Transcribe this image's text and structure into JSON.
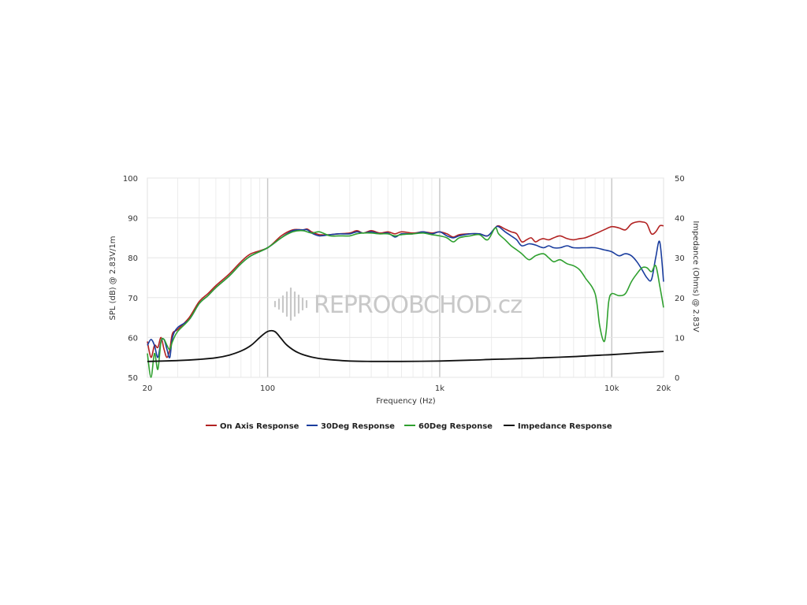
{
  "chart_data": {
    "type": "line",
    "title": "",
    "xlabel": "Frequency (Hz)",
    "ylabel": "SPL (dB) @ 2.83V/1m",
    "y2label": "Impedance (Ohms) @ 2.83V",
    "x_scale": "log",
    "xlim": [
      20,
      20000
    ],
    "ylim": [
      50,
      100
    ],
    "y2lim": [
      0,
      50
    ],
    "x_ticks": [
      {
        "value": 20,
        "label": "20"
      },
      {
        "value": 100,
        "label": "100"
      },
      {
        "value": 1000,
        "label": "1k"
      },
      {
        "value": 10000,
        "label": "10k"
      },
      {
        "value": 20000,
        "label": "20k"
      }
    ],
    "y_ticks": [
      "50",
      "60",
      "70",
      "80",
      "90",
      "100"
    ],
    "y2_ticks": [
      "0",
      "10",
      "20",
      "30",
      "40",
      "50"
    ],
    "grid": true,
    "legend_position": "bottom",
    "watermark": "REPROOBCHOD.cz",
    "series": [
      {
        "name": "On Axis Response",
        "color": "#b22222",
        "axis": "left",
        "points": [
          [
            20,
            59
          ],
          [
            21,
            55
          ],
          [
            22,
            58
          ],
          [
            23,
            57.5
          ],
          [
            24,
            60
          ],
          [
            25,
            57
          ],
          [
            26,
            55
          ],
          [
            27,
            57
          ],
          [
            28,
            61
          ],
          [
            30,
            62
          ],
          [
            35,
            65
          ],
          [
            40,
            69
          ],
          [
            45,
            71
          ],
          [
            50,
            73
          ],
          [
            60,
            76
          ],
          [
            70,
            79
          ],
          [
            80,
            81
          ],
          [
            100,
            82.5
          ],
          [
            120,
            85.5
          ],
          [
            140,
            87
          ],
          [
            160,
            87
          ],
          [
            170,
            87.2
          ],
          [
            180,
            86.5
          ],
          [
            200,
            85.8
          ],
          [
            230,
            85.8
          ],
          [
            260,
            86
          ],
          [
            300,
            86.2
          ],
          [
            330,
            86.8
          ],
          [
            360,
            86.2
          ],
          [
            400,
            86.8
          ],
          [
            450,
            86.2
          ],
          [
            500,
            86.5
          ],
          [
            550,
            86
          ],
          [
            600,
            86.5
          ],
          [
            700,
            86.2
          ],
          [
            800,
            86.5
          ],
          [
            900,
            86.2
          ],
          [
            1000,
            86.5
          ],
          [
            1100,
            86
          ],
          [
            1200,
            85.2
          ],
          [
            1300,
            85.8
          ],
          [
            1500,
            86
          ],
          [
            1700,
            86
          ],
          [
            1900,
            85.5
          ],
          [
            2100,
            87.5
          ],
          [
            2200,
            88
          ],
          [
            2400,
            87.2
          ],
          [
            2600,
            86.5
          ],
          [
            2800,
            86
          ],
          [
            3000,
            84
          ],
          [
            3200,
            84.5
          ],
          [
            3400,
            85
          ],
          [
            3600,
            84
          ],
          [
            3800,
            84.5
          ],
          [
            4000,
            84.8
          ],
          [
            4300,
            84.5
          ],
          [
            4600,
            85
          ],
          [
            5000,
            85.5
          ],
          [
            5500,
            84.8
          ],
          [
            6000,
            84.5
          ],
          [
            6500,
            84.8
          ],
          [
            7000,
            85
          ],
          [
            8000,
            86
          ],
          [
            9000,
            87
          ],
          [
            10000,
            87.8
          ],
          [
            11000,
            87.5
          ],
          [
            12000,
            87
          ],
          [
            13000,
            88.5
          ],
          [
            14000,
            89
          ],
          [
            15000,
            89
          ],
          [
            16000,
            88.5
          ],
          [
            17000,
            86
          ],
          [
            18000,
            86.5
          ],
          [
            19000,
            88
          ],
          [
            20000,
            88
          ]
        ]
      },
      {
        "name": "30Deg Response",
        "color": "#1a3d9e",
        "axis": "left",
        "points": [
          [
            20,
            58
          ],
          [
            21,
            59.5
          ],
          [
            22,
            58
          ],
          [
            23,
            55
          ],
          [
            24,
            59
          ],
          [
            25,
            59.5
          ],
          [
            26,
            57
          ],
          [
            27,
            55
          ],
          [
            28,
            60
          ],
          [
            30,
            62.5
          ],
          [
            35,
            64.5
          ],
          [
            40,
            68.5
          ],
          [
            45,
            70.5
          ],
          [
            50,
            72.5
          ],
          [
            60,
            75.5
          ],
          [
            70,
            78.5
          ],
          [
            80,
            80.5
          ],
          [
            100,
            82.5
          ],
          [
            120,
            85
          ],
          [
            140,
            86.8
          ],
          [
            160,
            87
          ],
          [
            170,
            87
          ],
          [
            180,
            86.2
          ],
          [
            200,
            85.5
          ],
          [
            230,
            85.8
          ],
          [
            260,
            86
          ],
          [
            300,
            86
          ],
          [
            330,
            86.5
          ],
          [
            360,
            86.2
          ],
          [
            400,
            86.5
          ],
          [
            450,
            86
          ],
          [
            500,
            86.2
          ],
          [
            550,
            85.2
          ],
          [
            600,
            86
          ],
          [
            700,
            86
          ],
          [
            800,
            86.5
          ],
          [
            900,
            86
          ],
          [
            1000,
            86.5
          ],
          [
            1100,
            85.5
          ],
          [
            1200,
            85
          ],
          [
            1300,
            85.5
          ],
          [
            1500,
            86
          ],
          [
            1700,
            86
          ],
          [
            1900,
            85.5
          ],
          [
            2100,
            87.5
          ],
          [
            2200,
            87.8
          ],
          [
            2400,
            86.5
          ],
          [
            2600,
            85.5
          ],
          [
            2800,
            84.5
          ],
          [
            3000,
            83
          ],
          [
            3300,
            83.5
          ],
          [
            3600,
            83.2
          ],
          [
            4000,
            82.5
          ],
          [
            4300,
            83
          ],
          [
            4600,
            82.5
          ],
          [
            5000,
            82.5
          ],
          [
            5500,
            83
          ],
          [
            6000,
            82.5
          ],
          [
            7000,
            82.5
          ],
          [
            8000,
            82.5
          ],
          [
            9000,
            82
          ],
          [
            10000,
            81.5
          ],
          [
            11000,
            80.5
          ],
          [
            12000,
            81
          ],
          [
            13000,
            80.5
          ],
          [
            14000,
            79
          ],
          [
            15000,
            77
          ],
          [
            16000,
            75
          ],
          [
            17000,
            74.5
          ],
          [
            18000,
            80
          ],
          [
            19000,
            84
          ],
          [
            20000,
            74
          ]
        ]
      },
      {
        "name": "60Deg Response",
        "color": "#2fa02f",
        "axis": "left",
        "points": [
          [
            20,
            56
          ],
          [
            21,
            50
          ],
          [
            22,
            56
          ],
          [
            23,
            52
          ],
          [
            24,
            59
          ],
          [
            25,
            59.5
          ],
          [
            26,
            58
          ],
          [
            27,
            57
          ],
          [
            28,
            59
          ],
          [
            30,
            61.5
          ],
          [
            35,
            64.5
          ],
          [
            40,
            68.5
          ],
          [
            45,
            70.5
          ],
          [
            50,
            72.5
          ],
          [
            60,
            75.5
          ],
          [
            70,
            78.5
          ],
          [
            80,
            80.5
          ],
          [
            100,
            82.5
          ],
          [
            120,
            85
          ],
          [
            140,
            86.5
          ],
          [
            160,
            86.8
          ],
          [
            180,
            86.2
          ],
          [
            200,
            86.5
          ],
          [
            230,
            85.5
          ],
          [
            260,
            85.5
          ],
          [
            300,
            85.5
          ],
          [
            330,
            86
          ],
          [
            360,
            86.2
          ],
          [
            400,
            86.2
          ],
          [
            450,
            86
          ],
          [
            500,
            86
          ],
          [
            550,
            85.5
          ],
          [
            600,
            85.8
          ],
          [
            700,
            86
          ],
          [
            800,
            86.2
          ],
          [
            900,
            85.8
          ],
          [
            1000,
            85.5
          ],
          [
            1100,
            85
          ],
          [
            1200,
            84
          ],
          [
            1300,
            85
          ],
          [
            1500,
            85.5
          ],
          [
            1700,
            85.8
          ],
          [
            1900,
            84.5
          ],
          [
            2100,
            87.5
          ],
          [
            2200,
            86
          ],
          [
            2400,
            84.5
          ],
          [
            2600,
            83
          ],
          [
            2800,
            82
          ],
          [
            3000,
            81
          ],
          [
            3300,
            79.5
          ],
          [
            3600,
            80.5
          ],
          [
            4000,
            81
          ],
          [
            4300,
            80
          ],
          [
            4600,
            79
          ],
          [
            5000,
            79.5
          ],
          [
            5500,
            78.5
          ],
          [
            6000,
            78
          ],
          [
            6500,
            77
          ],
          [
            7000,
            75
          ],
          [
            8000,
            71
          ],
          [
            8500,
            63
          ],
          [
            9000,
            59
          ],
          [
            9300,
            62
          ],
          [
            9600,
            69
          ],
          [
            10000,
            71
          ],
          [
            11000,
            70.5
          ],
          [
            12000,
            71
          ],
          [
            13000,
            74
          ],
          [
            14000,
            76
          ],
          [
            15000,
            77.5
          ],
          [
            16000,
            77.5
          ],
          [
            17000,
            76.5
          ],
          [
            18000,
            78
          ],
          [
            19000,
            73
          ],
          [
            20000,
            67.5
          ]
        ]
      },
      {
        "name": "Impedance Response",
        "color": "#111111",
        "axis": "right",
        "points": [
          [
            20,
            4
          ],
          [
            30,
            4.2
          ],
          [
            40,
            4.5
          ],
          [
            50,
            4.9
          ],
          [
            60,
            5.6
          ],
          [
            70,
            6.6
          ],
          [
            80,
            8
          ],
          [
            90,
            10
          ],
          [
            100,
            11.5
          ],
          [
            110,
            11.5
          ],
          [
            120,
            9.7
          ],
          [
            130,
            8
          ],
          [
            150,
            6.2
          ],
          [
            180,
            5.1
          ],
          [
            220,
            4.5
          ],
          [
            300,
            4.1
          ],
          [
            400,
            4
          ],
          [
            600,
            4
          ],
          [
            1000,
            4.1
          ],
          [
            1500,
            4.3
          ],
          [
            2000,
            4.5
          ],
          [
            3000,
            4.7
          ],
          [
            4000,
            4.9
          ],
          [
            6000,
            5.2
          ],
          [
            8000,
            5.5
          ],
          [
            10000,
            5.7
          ],
          [
            15000,
            6.2
          ],
          [
            20000,
            6.5
          ]
        ]
      }
    ]
  }
}
